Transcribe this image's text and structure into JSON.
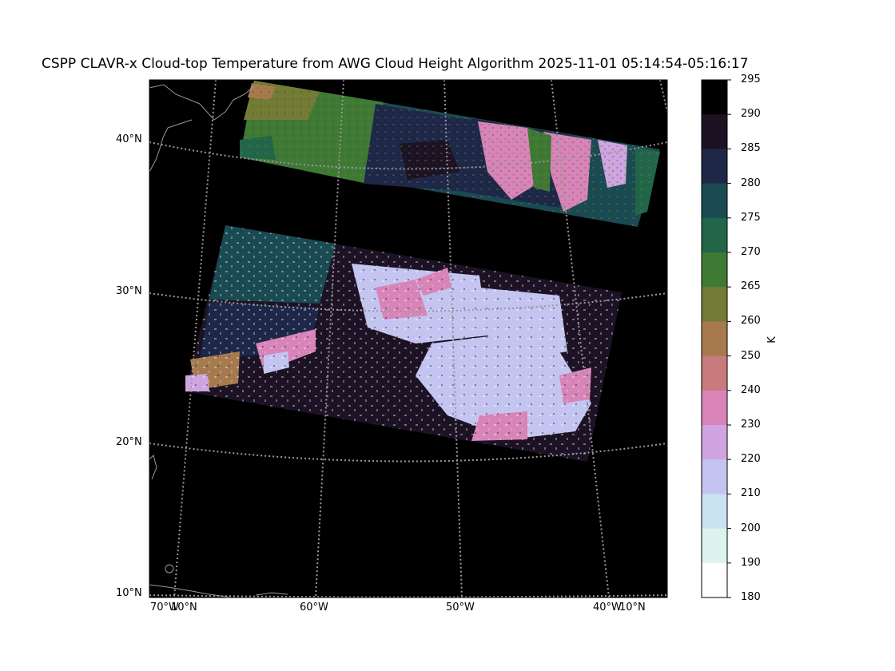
{
  "title": "CSPP CLAVR-x Cloud-top Temperature from AWG Cloud Height Algorithm 2025-11-01 05:14:54-05:16:17",
  "lat_labels": [
    "40°N",
    "30°N",
    "20°N",
    "10°N"
  ],
  "lon_labels": [
    "70°W",
    "10°N",
    "60°W",
    "50°W",
    "40°W",
    "10°N"
  ],
  "colorbar": {
    "unit": "K",
    "ticks": [
      "295",
      "290",
      "285",
      "280",
      "275",
      "270",
      "265",
      "260",
      "250",
      "240",
      "230",
      "220",
      "210",
      "200",
      "190",
      "180"
    ],
    "colors": [
      "#000000",
      "#1c1224",
      "#1e2748",
      "#1a4a52",
      "#216648",
      "#3f7a35",
      "#737b34",
      "#a67a4c",
      "#c87a7c",
      "#d884b8",
      "#cfa4e0",
      "#c4c4f0",
      "#c8e2ef",
      "#ddf3ee",
      "#ffffff"
    ]
  },
  "colors": {
    "coastline": "#9a9a9a",
    "gridline": "#9a9a9a",
    "background": "#000000"
  }
}
